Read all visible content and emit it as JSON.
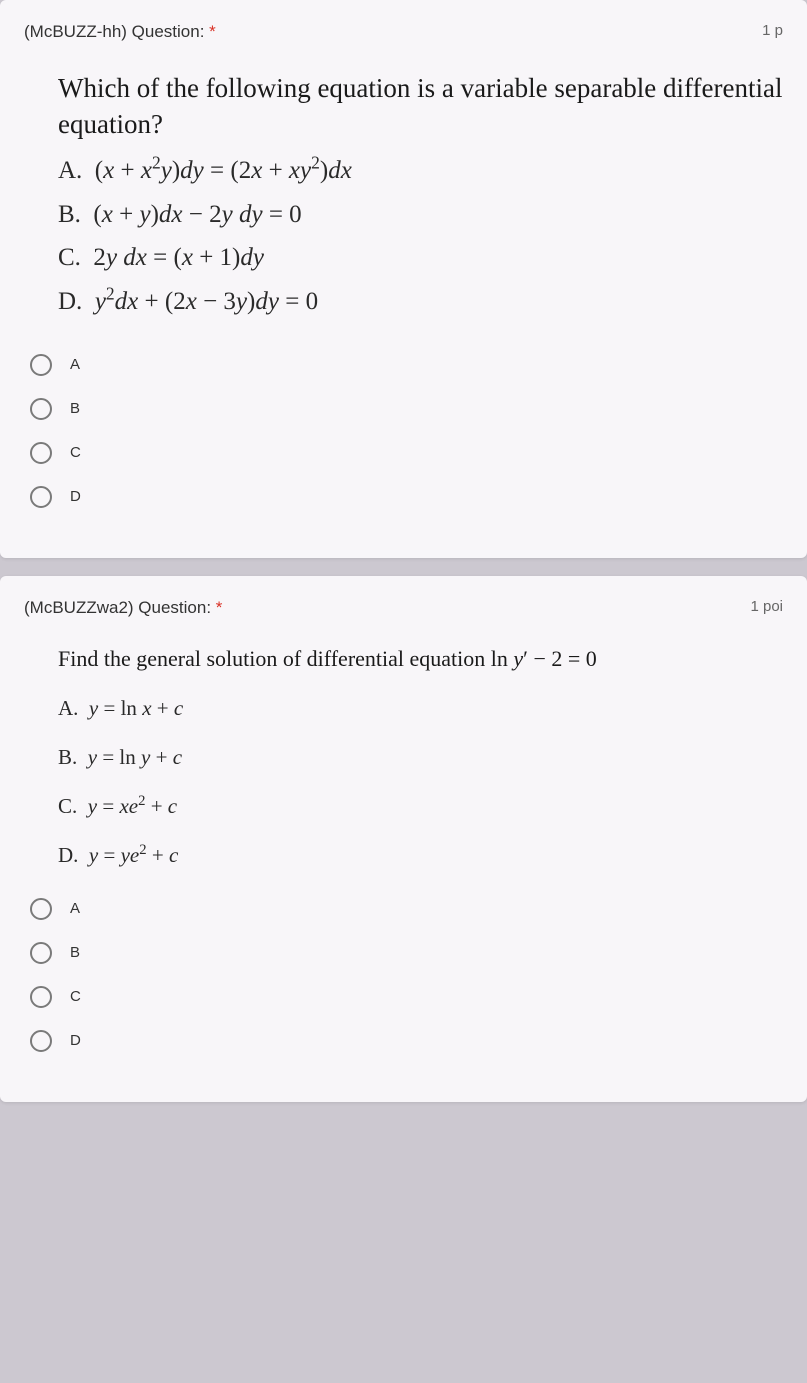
{
  "card1": {
    "title_prefix": "(McBUZZ-hh) Question: ",
    "star": "*",
    "points": "1 p",
    "prompt": "Which of the following equation is a variable separable differential equation?",
    "option_a_label": "A. ",
    "option_a_math": "( x + x² y ) dy = ( 2x + xy² ) dx",
    "option_b_label": "B. ",
    "option_b_math": "( x + y ) dx − 2y dy = 0",
    "option_c_label": "C. ",
    "option_c_math": "2y dx = ( x + 1 ) dy",
    "option_d_label": "D. ",
    "option_d_math": "y² dx + ( 2x − 3y ) dy = 0",
    "radios": {
      "a": "A",
      "b": "B",
      "c": "C",
      "d": "D"
    }
  },
  "card2": {
    "title_prefix": "(McBUZZwa2) Question: ",
    "star": "*",
    "points": "1 poi",
    "prompt_text": "Find the general solution of differential equation  ln ",
    "prompt_math": "y′ − 2 = 0",
    "option_a_label": "A. ",
    "option_a_math": "y = ln x + c",
    "option_b_label": "B. ",
    "option_b_math": "y = ln y + c",
    "option_c_label": "C. ",
    "option_c_math": "y = xe² + c",
    "option_d_label": "D. ",
    "option_d_math": "y = ye² + c",
    "radios": {
      "a": "A",
      "b": "B",
      "c": "C",
      "d": "D"
    }
  },
  "colors": {
    "page_bg": "#ccc8d0",
    "card_bg": "#f8f6f9",
    "text": "#333",
    "required": "#d93025",
    "radio_border": "#7a7a7a"
  }
}
